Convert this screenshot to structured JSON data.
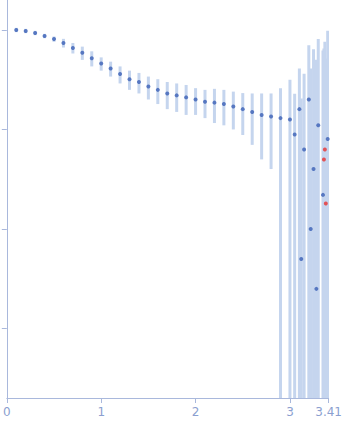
{
  "chart_data": {
    "type": "scatter",
    "log": "y",
    "grid": false,
    "tick_labels": "x",
    "xlim": [
      0,
      3.41
    ],
    "ylim": [
      0.0002,
      2
    ],
    "xticks": [
      0,
      1,
      2,
      3
    ],
    "yticks": [
      0.001,
      0.01,
      0.1,
      1
    ],
    "series": [
      {
        "color": "#3a5fb5",
        "x": [
          0.1,
          0.2,
          0.3,
          0.4,
          0.5,
          0.6,
          0.7,
          0.8,
          0.9,
          1.0,
          1.1,
          1.2,
          1.3,
          1.4,
          1.5,
          1.6,
          1.7,
          1.8,
          1.9,
          2.0,
          2.1,
          2.2,
          2.3,
          2.4,
          2.5,
          2.6,
          2.7,
          2.8,
          2.9,
          3.0,
          3.05,
          3.1,
          3.12,
          3.15,
          3.2,
          3.22,
          3.25,
          3.28,
          3.3,
          3.35,
          3.4
        ],
        "values": [
          1.0,
          0.977,
          0.933,
          0.87,
          0.81,
          0.74,
          0.66,
          0.59,
          0.52,
          0.46,
          0.41,
          0.36,
          0.32,
          0.3,
          0.27,
          0.25,
          0.23,
          0.22,
          0.21,
          0.2,
          0.19,
          0.186,
          0.18,
          0.17,
          0.16,
          0.15,
          0.14,
          0.135,
          0.13,
          0.126,
          0.089,
          0.16,
          0.005,
          0.063,
          0.2,
          0.01,
          0.04,
          0.0025,
          0.11,
          0.022,
          0.08
        ],
        "errors": [
          0.05,
          0.049,
          0.047,
          0.044,
          0.05,
          0.074,
          0.08,
          0.09,
          0.09,
          0.07,
          0.07,
          0.07,
          0.07,
          0.07,
          0.07,
          0.07,
          0.07,
          0.07,
          0.07,
          0.06,
          0.06,
          0.07,
          0.07,
          0.07,
          0.072,
          0.08,
          0.09,
          0.095,
          0.13,
          0.19,
          0.14,
          0.25,
          0.2,
          0.3,
          0.5,
          0.4,
          0.6,
          0.5,
          0.7,
          0.6,
          0.9
        ]
      },
      {
        "color": "#e8312f",
        "x": [
          3.36,
          3.37,
          3.38
        ],
        "values": [
          0.05,
          0.063,
          0.018
        ],
        "errors": [
          0.6,
          0.7,
          0.5
        ]
      }
    ]
  }
}
